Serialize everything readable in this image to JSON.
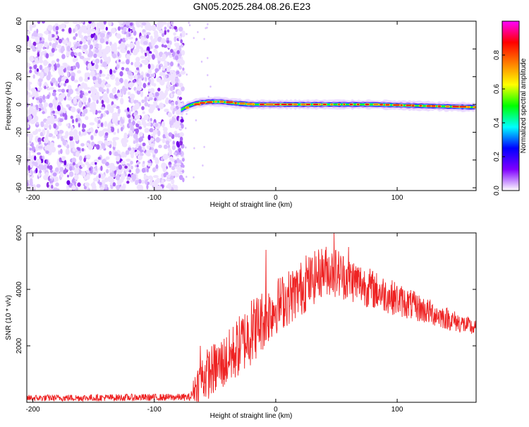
{
  "title": "GN05.2025.284.08.26.E23",
  "chart_data": [
    {
      "type": "heatmap",
      "xlabel": "Height of straight line (km)",
      "ylabel": "Frequency (Hz)",
      "xlim": [
        -205,
        165
      ],
      "ylim": [
        -62,
        60
      ],
      "x_ticks": [
        {
          "value": -200,
          "label": "-200"
        },
        {
          "value": -100,
          "label": "-100"
        },
        {
          "value": 0,
          "label": "0"
        },
        {
          "value": 100,
          "label": "100"
        }
      ],
      "y_ticks": [
        {
          "value": -60,
          "label": "-60"
        },
        {
          "value": -40,
          "label": "-40"
        },
        {
          "value": -20,
          "label": "-20"
        },
        {
          "value": 0,
          "label": "0"
        },
        {
          "value": 20,
          "label": "20"
        },
        {
          "value": 40,
          "label": "40"
        },
        {
          "value": 60,
          "label": "60"
        }
      ],
      "noise_region_x": [
        -205,
        -76
      ],
      "signal_start_x": -78,
      "signal_track": [
        {
          "x": -78,
          "freq": -4
        },
        {
          "x": -72,
          "freq": -1
        },
        {
          "x": -65,
          "freq": 1
        },
        {
          "x": -55,
          "freq": 2
        },
        {
          "x": -45,
          "freq": 2
        },
        {
          "x": -35,
          "freq": 1
        },
        {
          "x": -20,
          "freq": 0
        },
        {
          "x": 0,
          "freq": 0
        },
        {
          "x": 40,
          "freq": 0
        },
        {
          "x": 80,
          "freq": 0
        },
        {
          "x": 120,
          "freq": -1
        },
        {
          "x": 165,
          "freq": -2
        }
      ],
      "colorbar": {
        "label": "Normalized spectral amplitude",
        "range": [
          0,
          1
        ],
        "ticks": [
          {
            "value": 0.0,
            "label": "0.0"
          },
          {
            "value": 0.2,
            "label": "0.2"
          },
          {
            "value": 0.4,
            "label": "0.4"
          },
          {
            "value": 0.6,
            "label": "0.6"
          },
          {
            "value": 0.8,
            "label": "0.8"
          }
        ],
        "colors": [
          "#ffffff",
          "#7f00ff",
          "#0000ff",
          "#00ffff",
          "#00ff00",
          "#ffff00",
          "#ff7f00",
          "#ff0000",
          "#ff00ff"
        ]
      }
    },
    {
      "type": "line",
      "xlabel": "Height of straight line (km)",
      "ylabel": "SNR (10 * v/v)",
      "xlim": [
        -205,
        165
      ],
      "ylim": [
        0,
        6000
      ],
      "color": "#ee2222",
      "x_ticks": [
        {
          "value": -200,
          "label": "-200"
        },
        {
          "value": -100,
          "label": "-100"
        },
        {
          "value": 0,
          "label": "0"
        },
        {
          "value": 100,
          "label": "100"
        }
      ],
      "y_ticks": [
        {
          "value": 2000,
          "label": "2000"
        },
        {
          "value": 4000,
          "label": "4000"
        },
        {
          "value": 6000,
          "label": "6000"
        }
      ],
      "envelope": [
        {
          "x": -205,
          "base": 150,
          "amp": 120
        },
        {
          "x": -70,
          "base": 180,
          "amp": 130
        },
        {
          "x": -67,
          "base": 500,
          "amp": 500
        },
        {
          "x": -60,
          "base": 900,
          "amp": 900
        },
        {
          "x": -40,
          "base": 1500,
          "amp": 1000
        },
        {
          "x": -20,
          "base": 2500,
          "amp": 1200
        },
        {
          "x": 0,
          "base": 3400,
          "amp": 1000
        },
        {
          "x": 20,
          "base": 4000,
          "amp": 1000
        },
        {
          "x": 40,
          "base": 4700,
          "amp": 900
        },
        {
          "x": 50,
          "base": 4600,
          "amp": 900
        },
        {
          "x": 80,
          "base": 4000,
          "amp": 700
        },
        {
          "x": 120,
          "base": 3300,
          "amp": 500
        },
        {
          "x": 165,
          "base": 2600,
          "amp": 300
        }
      ],
      "spikes": [
        {
          "x": -62,
          "value": 2000
        },
        {
          "x": -20,
          "value": 3600
        },
        {
          "x": -8,
          "value": 5400
        },
        {
          "x": 25,
          "value": 5200
        },
        {
          "x": 48,
          "value": 6000
        },
        {
          "x": 60,
          "value": 5500
        }
      ]
    }
  ]
}
